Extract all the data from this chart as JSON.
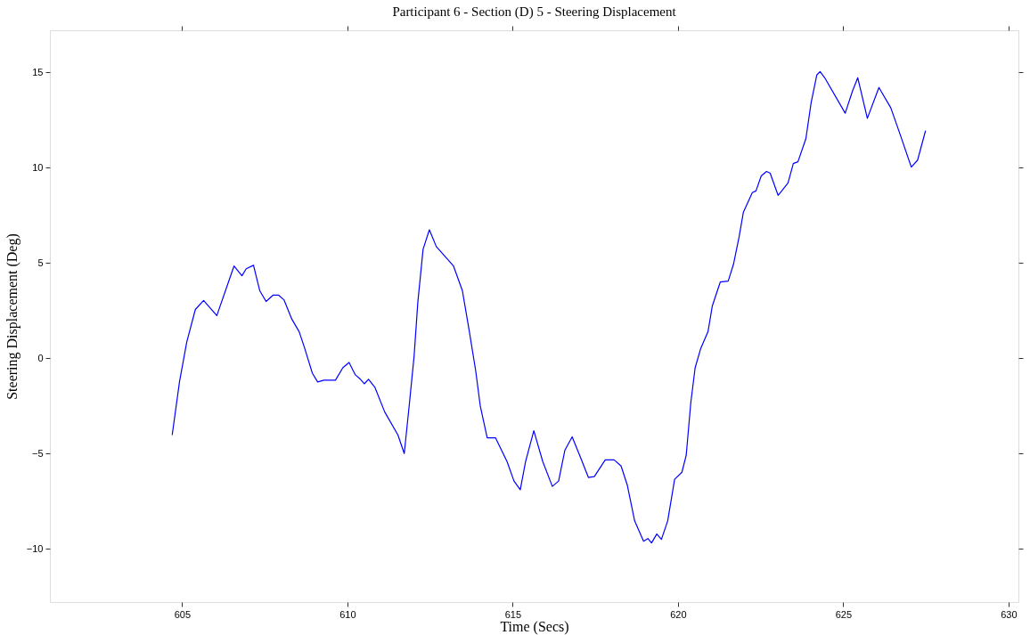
{
  "chart_data": {
    "type": "line",
    "title": "Participant 6 - Section (D) 5 - Steering Displacement",
    "xlabel": "Time (Secs)",
    "ylabel": "Steering Displacement (Deg)",
    "xlim": [
      601,
      630.3
    ],
    "ylim": [
      -12.8,
      17.2
    ],
    "xticks": [
      605,
      610,
      615,
      620,
      625,
      630
    ],
    "yticks": [
      -10,
      -5,
      0,
      5,
      10,
      15
    ],
    "grid": false,
    "x": [
      604.7,
      604.92,
      605.14,
      605.4,
      605.65,
      606.05,
      606.57,
      606.81,
      606.94,
      607.16,
      607.35,
      607.54,
      607.75,
      607.92,
      608.08,
      608.32,
      608.54,
      608.7,
      608.94,
      609.1,
      609.29,
      609.64,
      609.86,
      610.05,
      610.24,
      610.37,
      610.51,
      610.64,
      610.83,
      611.13,
      611.53,
      611.72,
      611.88,
      612.02,
      612.13,
      612.29,
      612.48,
      612.69,
      613.21,
      613.48,
      613.69,
      613.88,
      614.02,
      614.23,
      614.48,
      614.83,
      615.04,
      615.23,
      615.39,
      615.64,
      615.91,
      616.2,
      616.39,
      616.58,
      616.8,
      617.07,
      617.29,
      617.47,
      617.8,
      618.07,
      618.28,
      618.47,
      618.69,
      618.96,
      619.09,
      619.2,
      619.36,
      619.5,
      619.69,
      619.9,
      620.12,
      620.25,
      620.39,
      620.52,
      620.69,
      620.91,
      621.04,
      621.28,
      621.52,
      621.68,
      621.85,
      621.98,
      622.25,
      622.36,
      622.52,
      622.68,
      622.79,
      623.03,
      623.14,
      623.33,
      623.49,
      623.63,
      623.87,
      624.03,
      624.2,
      624.3,
      624.44,
      625.06,
      625.28,
      625.44,
      625.73,
      626.08,
      626.44,
      626.73,
      627.06,
      627.25,
      627.49
    ],
    "series": [
      {
        "color": "#0000ff",
        "values": [
          -4.04,
          -1.25,
          0.84,
          2.55,
          3.02,
          2.23,
          4.83,
          4.32,
          4.69,
          4.87,
          3.53,
          2.97,
          3.3,
          3.3,
          3.06,
          2.04,
          1.39,
          0.56,
          -0.79,
          -1.25,
          -1.16,
          -1.16,
          -0.51,
          -0.23,
          -0.88,
          -1.07,
          -1.35,
          -1.11,
          -1.53,
          -2.83,
          -4.04,
          -5.01,
          -2.32,
          0.14,
          2.92,
          5.71,
          6.73,
          5.85,
          4.83,
          3.53,
          1.39,
          -0.65,
          -2.51,
          -4.18,
          -4.18,
          -5.43,
          -6.45,
          -6.91,
          -5.43,
          -3.81,
          -5.43,
          -6.73,
          -6.45,
          -4.83,
          -4.13,
          -5.29,
          -6.26,
          -6.22,
          -5.34,
          -5.34,
          -5.66,
          -6.68,
          -8.54,
          -9.61,
          -9.47,
          -9.7,
          -9.23,
          -9.51,
          -8.54,
          -6.36,
          -5.99,
          -5.1,
          -2.32,
          -0.51,
          0.51,
          1.39,
          2.74,
          3.99,
          4.04,
          4.92,
          6.36,
          7.66,
          8.68,
          8.77,
          9.56,
          9.79,
          9.7,
          8.54,
          8.77,
          9.19,
          10.21,
          10.3,
          11.51,
          13.41,
          14.85,
          15.03,
          14.71,
          12.85,
          14.01,
          14.71,
          12.58,
          14.2,
          13.13,
          11.69,
          10.02,
          10.39,
          11.93
        ]
      }
    ]
  }
}
